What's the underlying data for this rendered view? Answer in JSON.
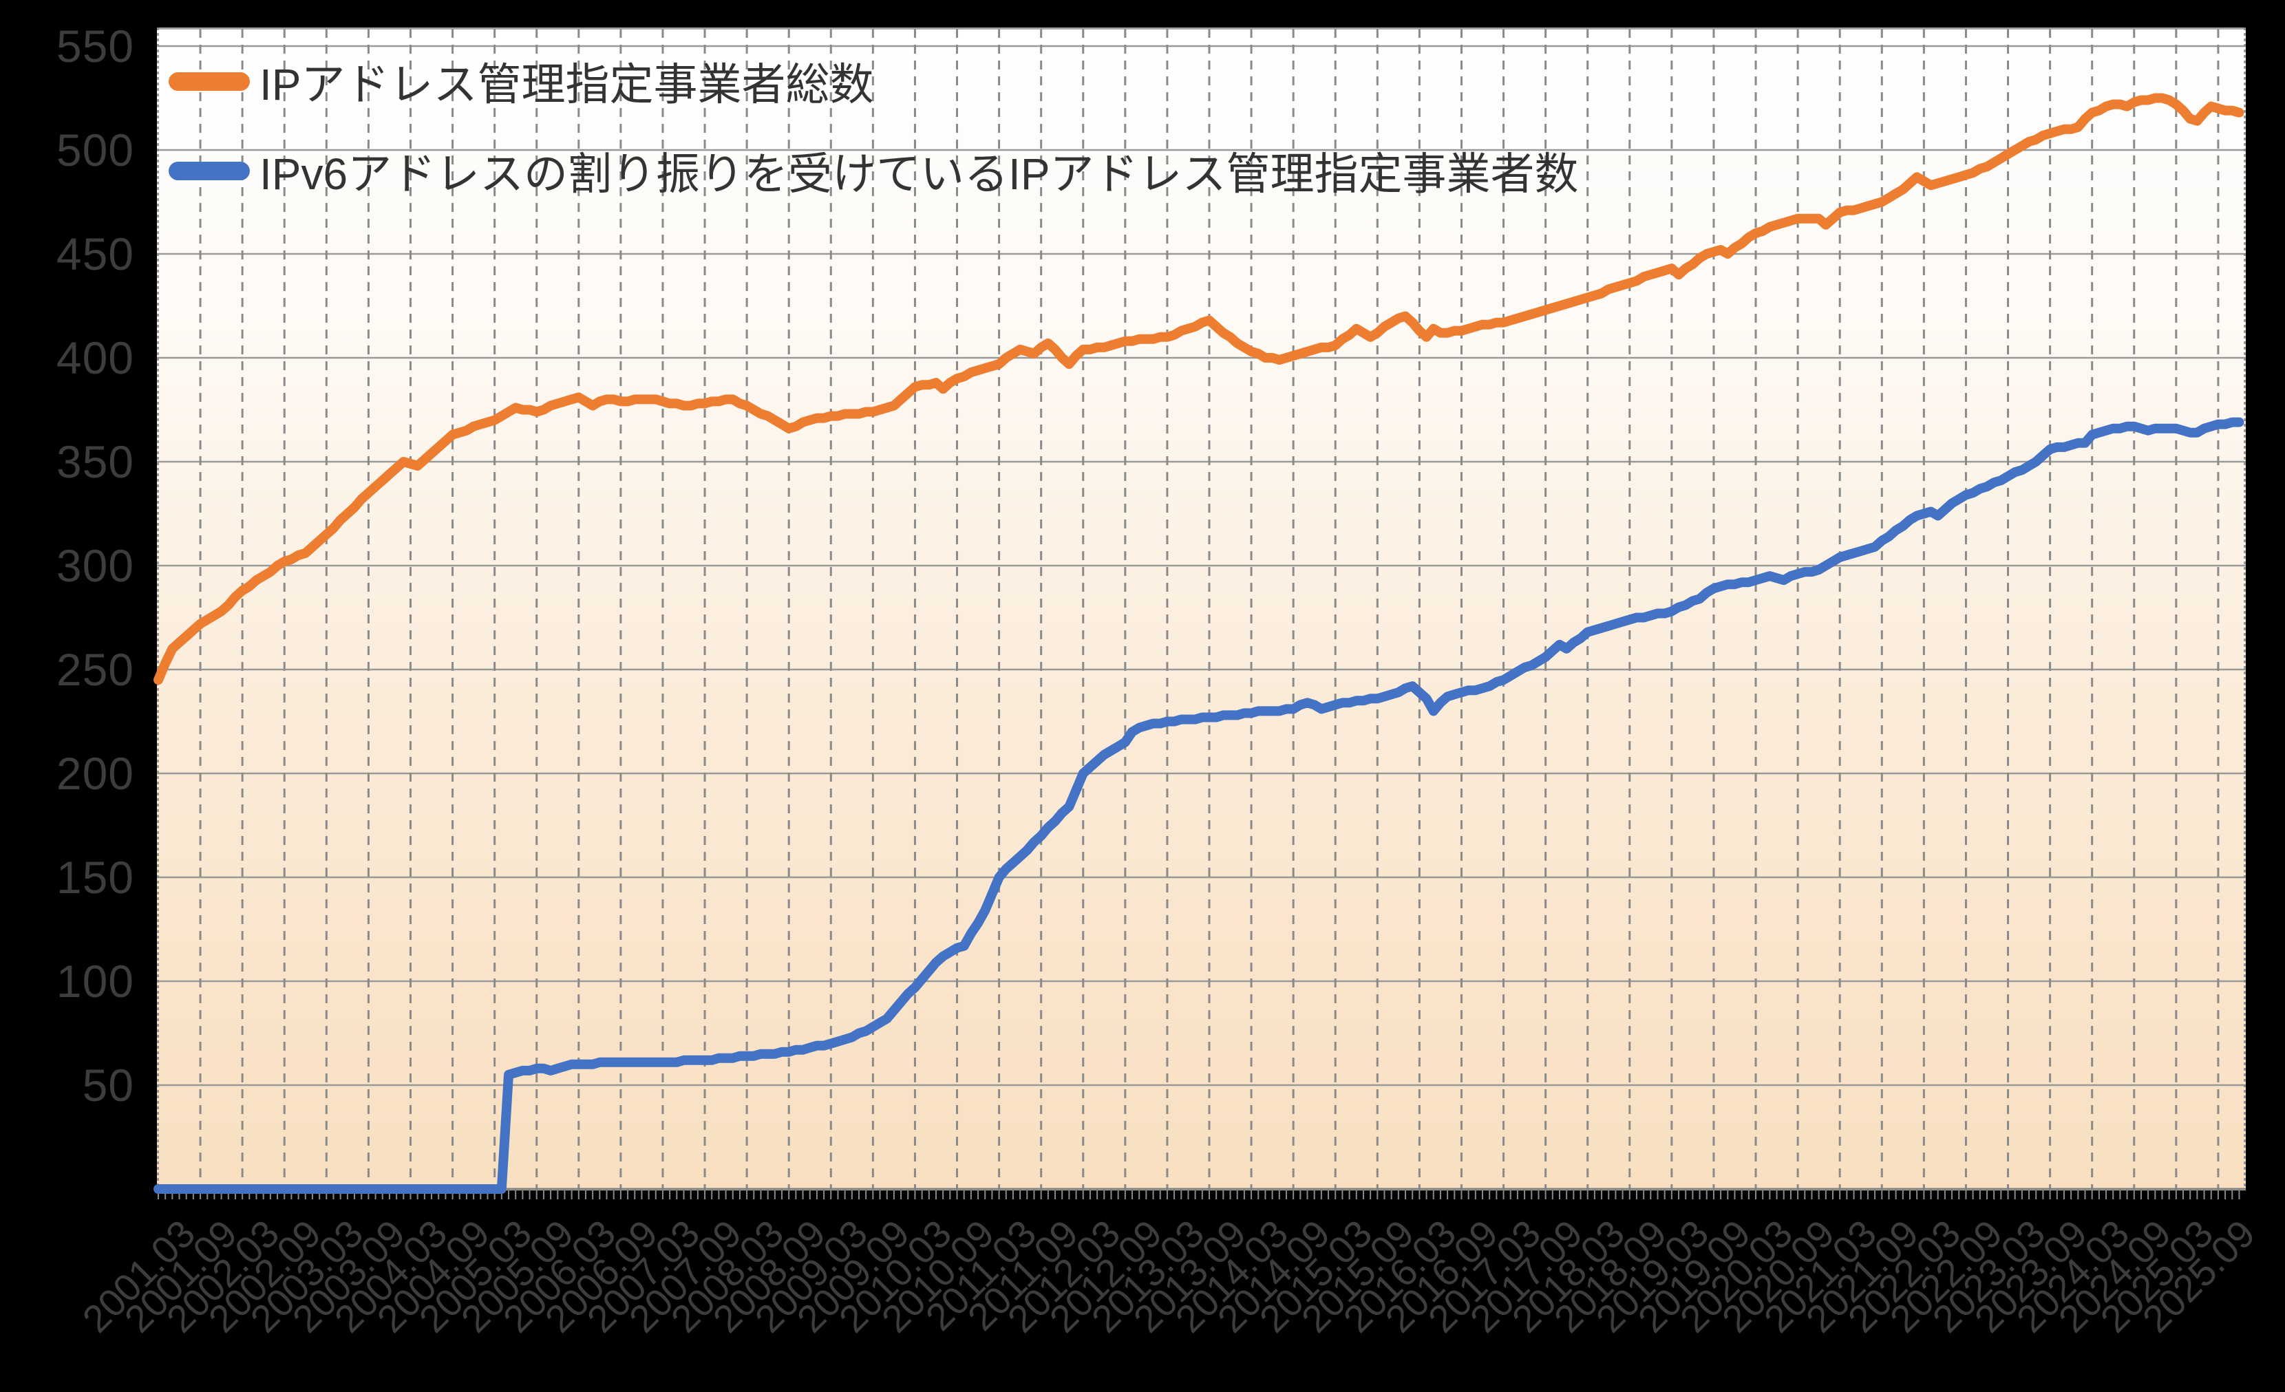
{
  "legend": {
    "total": "IPアドレス管理指定事業者総数",
    "ipv6": "IPv6アドレスの割り振りを受けているIPアドレス管理指定事業者数"
  },
  "colors": {
    "total_line": "#ED7D31",
    "ipv6_line": "#4472C4",
    "gridline": "#999999",
    "axis_line": "#808080",
    "axis_text": "#3d3d3d",
    "outer_background": "#000000",
    "plot_gradient_top": "#FFFFFF",
    "plot_gradient_bottom": "#F8DFC0"
  },
  "chart_data": {
    "type": "line",
    "title": "",
    "xlabel": "",
    "ylabel": "",
    "x_start": "2001.03",
    "x_interval": "monthly",
    "x_tick_every_months": 6,
    "x_tick_labels": [
      "2001.03",
      "2001.09",
      "2002.03",
      "2002.09",
      "2003.03",
      "2003.09",
      "2004.03",
      "2004.09",
      "2005.03",
      "2005.09",
      "2006.03",
      "2006.09",
      "2007.03",
      "2007.09",
      "2008.03",
      "2008.09",
      "2009.03",
      "2009.09",
      "2010.03",
      "2010.09",
      "2011.03",
      "2011.09",
      "2012.03",
      "2012.09",
      "2013.03",
      "2013.09",
      "2014.03",
      "2014.09",
      "2015.03",
      "2015.09",
      "2016.03",
      "2016.09",
      "2017.03",
      "2017.09",
      "2018.03",
      "2018.09",
      "2019.03",
      "2019.09",
      "2020.03",
      "2020.09",
      "2021.03",
      "2021.09",
      "2022.03",
      "2022.09",
      "2023.03",
      "2023.09",
      "2024.03",
      "2024.09",
      "2025.03",
      "2025.09"
    ],
    "ylim": [
      0,
      560
    ],
    "y_ticks": [
      50,
      100,
      150,
      200,
      250,
      300,
      350,
      400,
      450,
      500,
      550
    ],
    "grid": "horizontal solid gray, vertical dashed gray at 6-month ticks, monthly minor ticks below axis",
    "legend_position": "top-left inside plot",
    "series": [
      {
        "key": "total",
        "name": "IPアドレス管理指定事業者総数",
        "color": "#ED7D31",
        "values": [
          245,
          253,
          260,
          263,
          266,
          269,
          272,
          274,
          276,
          278,
          281,
          285,
          288,
          290,
          293,
          295,
          297,
          300,
          302,
          303,
          305,
          306,
          309,
          312,
          315,
          318,
          322,
          325,
          328,
          332,
          335,
          338,
          341,
          344,
          347,
          350,
          349,
          348,
          351,
          354,
          357,
          360,
          363,
          364,
          365,
          367,
          368,
          369,
          370,
          372,
          374,
          376,
          375,
          375,
          374,
          375,
          377,
          378,
          379,
          380,
          381,
          379,
          377,
          379,
          380,
          380,
          379,
          379,
          380,
          380,
          380,
          380,
          379,
          378,
          378,
          377,
          377,
          378,
          378,
          379,
          379,
          380,
          380,
          378,
          377,
          375,
          373,
          372,
          370,
          368,
          366,
          367,
          369,
          370,
          371,
          371,
          372,
          372,
          373,
          373,
          373,
          374,
          374,
          375,
          376,
          377,
          380,
          383,
          386,
          387,
          387,
          388,
          385,
          388,
          390,
          391,
          393,
          394,
          395,
          396,
          397,
          400,
          402,
          404,
          403,
          402,
          405,
          407,
          404,
          400,
          397,
          401,
          404,
          404,
          405,
          405,
          406,
          407,
          408,
          408,
          409,
          409,
          409,
          410,
          410,
          411,
          413,
          414,
          415,
          417,
          418,
          415,
          412,
          410,
          407,
          405,
          403,
          402,
          400,
          400,
          399,
          400,
          401,
          402,
          403,
          404,
          405,
          405,
          406,
          409,
          411,
          414,
          412,
          410,
          412,
          415,
          417,
          419,
          420,
          417,
          413,
          410,
          414,
          412,
          412,
          413,
          413,
          414,
          415,
          416,
          416,
          417,
          417,
          418,
          419,
          420,
          421,
          422,
          423,
          424,
          425,
          426,
          427,
          428,
          429,
          430,
          431,
          433,
          434,
          435,
          436,
          437,
          439,
          440,
          441,
          442,
          443,
          440,
          443,
          445,
          448,
          450,
          451,
          452,
          450,
          453,
          455,
          458,
          460,
          461,
          463,
          464,
          465,
          466,
          467,
          467,
          467,
          467,
          464,
          467,
          470,
          471,
          471,
          472,
          473,
          474,
          475,
          477,
          479,
          481,
          484,
          487,
          485,
          483,
          484,
          485,
          486,
          487,
          488,
          489,
          491,
          492,
          494,
          496,
          498,
          500,
          502,
          504,
          505,
          507,
          508,
          509,
          510,
          510,
          511,
          515,
          518,
          519,
          521,
          522,
          522,
          521,
          523,
          524,
          524,
          525,
          525,
          524,
          522,
          519,
          515,
          514,
          518,
          521,
          520,
          519,
          519,
          518
        ]
      },
      {
        "key": "ipv6",
        "name": "IPv6アドレスの割り振りを受けているIPアドレス管理指定事業者数",
        "color": "#4472C4",
        "values": [
          0,
          0,
          0,
          0,
          0,
          0,
          0,
          0,
          0,
          0,
          0,
          0,
          0,
          0,
          0,
          0,
          0,
          0,
          0,
          0,
          0,
          0,
          0,
          0,
          0,
          0,
          0,
          0,
          0,
          0,
          0,
          0,
          0,
          0,
          0,
          0,
          0,
          0,
          0,
          0,
          0,
          0,
          0,
          0,
          0,
          0,
          0,
          0,
          0,
          0,
          55,
          56,
          57,
          57,
          58,
          58,
          57,
          58,
          59,
          60,
          60,
          60,
          60,
          61,
          61,
          61,
          61,
          61,
          61,
          61,
          61,
          61,
          61,
          61,
          61,
          62,
          62,
          62,
          62,
          62,
          63,
          63,
          63,
          64,
          64,
          64,
          65,
          65,
          65,
          66,
          66,
          67,
          67,
          68,
          69,
          69,
          70,
          71,
          72,
          73,
          75,
          76,
          78,
          80,
          82,
          86,
          90,
          94,
          97,
          101,
          105,
          109,
          112,
          114,
          116,
          117,
          123,
          128,
          134,
          142,
          150,
          154,
          157,
          160,
          163,
          167,
          170,
          174,
          177,
          181,
          184,
          192,
          200,
          203,
          206,
          209,
          211,
          213,
          215,
          220,
          222,
          223,
          224,
          224,
          225,
          225,
          226,
          226,
          226,
          227,
          227,
          227,
          228,
          228,
          228,
          229,
          229,
          230,
          230,
          230,
          230,
          231,
          231,
          233,
          234,
          233,
          231,
          232,
          233,
          234,
          234,
          235,
          235,
          236,
          236,
          237,
          238,
          239,
          241,
          242,
          239,
          236,
          230,
          234,
          237,
          238,
          239,
          240,
          240,
          241,
          242,
          244,
          245,
          247,
          249,
          251,
          252,
          254,
          256,
          259,
          262,
          260,
          263,
          265,
          268,
          269,
          270,
          271,
          272,
          273,
          274,
          275,
          275,
          276,
          277,
          277,
          278,
          280,
          281,
          283,
          284,
          287,
          289,
          290,
          291,
          291,
          292,
          292,
          293,
          294,
          295,
          294,
          293,
          295,
          296,
          297,
          297,
          298,
          300,
          302,
          304,
          305,
          306,
          307,
          308,
          309,
          312,
          314,
          317,
          319,
          322,
          324,
          325,
          326,
          324,
          327,
          330,
          332,
          334,
          335,
          337,
          338,
          340,
          341,
          343,
          345,
          346,
          348,
          350,
          353,
          356,
          357,
          357,
          358,
          359,
          359,
          363,
          364,
          365,
          366,
          366,
          367,
          367,
          366,
          365,
          366,
          366,
          366,
          366,
          365,
          364,
          364,
          366,
          367,
          368,
          368,
          369,
          369
        ]
      }
    ]
  }
}
